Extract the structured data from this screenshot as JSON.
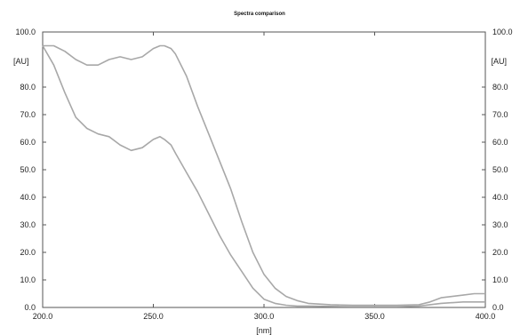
{
  "chart_data": {
    "type": "line",
    "title": "Spectra comparison",
    "xlabel": "[nm]",
    "ylabel_left": "[AU]",
    "ylabel_right": "[AU]",
    "xlim": [
      200,
      400
    ],
    "ylim": [
      0,
      100
    ],
    "x_ticks": [
      "200.0",
      "250.0",
      "300.0",
      "350.0",
      "400.0"
    ],
    "y_ticks": [
      "0.0",
      "10.0",
      "20.0",
      "30.0",
      "40.0",
      "50.0",
      "60.0",
      "70.0",
      "80.0",
      "100.0"
    ],
    "grid": false,
    "series": [
      {
        "color": "#a8a8a8",
        "x": [
          200,
          205,
          210,
          215,
          220,
          225,
          230,
          235,
          240,
          245,
          250,
          253,
          255,
          258,
          260,
          265,
          270,
          275,
          280,
          285,
          290,
          295,
          300,
          305,
          310,
          315,
          320,
          330,
          340,
          350,
          360,
          370,
          375,
          380,
          385,
          390,
          395,
          400
        ],
        "y": [
          95,
          95,
          93,
          90,
          88,
          88,
          90,
          91,
          90,
          91,
          94,
          95,
          95,
          94,
          92,
          84,
          73,
          63,
          53,
          43,
          31,
          20,
          12,
          7,
          4,
          2.5,
          1.5,
          1,
          0.8,
          0.8,
          0.8,
          1,
          2,
          3.5,
          4,
          4.5,
          5,
          5
        ]
      },
      {
        "color": "#a8a8a8",
        "x": [
          200,
          205,
          210,
          215,
          220,
          225,
          230,
          235,
          240,
          245,
          250,
          253,
          255,
          258,
          260,
          265,
          270,
          275,
          280,
          285,
          290,
          295,
          300,
          305,
          310,
          315,
          320,
          330,
          340,
          350,
          360,
          370,
          375,
          380,
          390,
          400
        ],
        "y": [
          95,
          88,
          78,
          69,
          65,
          63,
          62,
          59,
          57,
          58,
          61,
          62,
          61,
          59,
          56,
          49,
          42,
          34,
          26,
          19,
          13,
          7,
          3,
          1.5,
          0.8,
          0.5,
          0.5,
          0.4,
          0.3,
          0.3,
          0.3,
          0.5,
          1,
          1.5,
          2,
          2
        ]
      }
    ]
  }
}
